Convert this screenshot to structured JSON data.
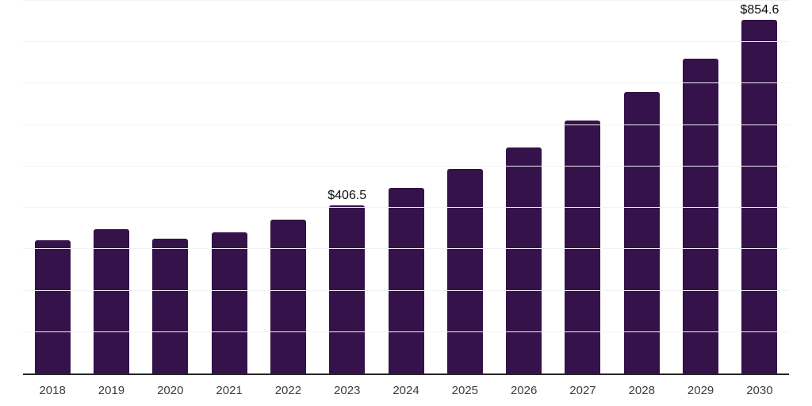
{
  "chart_data": {
    "type": "bar",
    "title": "",
    "xlabel": "",
    "ylabel": "",
    "categories": [
      "2018",
      "2019",
      "2020",
      "2021",
      "2022",
      "2023",
      "2024",
      "2025",
      "2026",
      "2027",
      "2028",
      "2029",
      "2030"
    ],
    "values": [
      321,
      349,
      325,
      341,
      372,
      406.5,
      448,
      495,
      545,
      611,
      680,
      761,
      854.6
    ],
    "data_labels": [
      "",
      "",
      "",
      "",
      "",
      "$406.5",
      "",
      "",
      "",
      "",
      "",
      "",
      "$854.6"
    ],
    "ylim": [
      0,
      900
    ],
    "grid_step": 100,
    "grid": "horizontal",
    "legend": "none",
    "colors": {
      "bar": "#351249",
      "gridline": "#f2f2f4",
      "axis_line": "#262626",
      "tick_label": "#3d3d3d",
      "value_label": "#0d0d0d",
      "background": "#ffffff"
    }
  }
}
